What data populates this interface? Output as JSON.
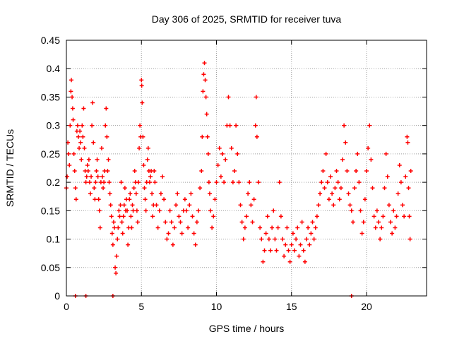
{
  "chart_data": {
    "type": "scatter",
    "title": "Day 306 of 2025, SRMTID for receiver tuva",
    "xlabel": "GPS time / hours",
    "ylabel": "SRMTID / TECUs",
    "xlim": [
      0,
      24
    ],
    "ylim": [
      0,
      0.45
    ],
    "xticks": [
      0,
      5,
      10,
      15,
      20
    ],
    "yticks": [
      0,
      0.05,
      0.1,
      0.15,
      0.2,
      0.25,
      0.3,
      0.35,
      0.4,
      0.45
    ],
    "xtick_labels": [
      "0",
      "5",
      "10",
      "15",
      "20"
    ],
    "ytick_labels": [
      "0",
      "0.05",
      "0.1",
      "0.15",
      "0.2",
      "0.25",
      "0.3",
      "0.35",
      "0.4",
      "0.45"
    ],
    "grid": true,
    "marker": "+",
    "series_color": "#ff0000",
    "series": [
      {
        "points": [
          [
            0.0,
            0.19
          ],
          [
            0.05,
            0.21
          ],
          [
            0.1,
            0.27
          ],
          [
            0.15,
            0.25
          ],
          [
            0.2,
            0.23
          ],
          [
            0.25,
            0.3
          ],
          [
            0.3,
            0.36
          ],
          [
            0.33,
            0.38
          ],
          [
            0.38,
            0.35
          ],
          [
            0.42,
            0.33
          ],
          [
            0.45,
            0.31
          ],
          [
            0.5,
            0.25
          ],
          [
            0.55,
            0.22
          ],
          [
            0.6,
            0.19
          ],
          [
            0.65,
            0.17
          ],
          [
            0.7,
            0.29
          ],
          [
            0.75,
            0.3
          ],
          [
            0.8,
            0.28
          ],
          [
            0.85,
            0.26
          ],
          [
            0.9,
            0.29
          ],
          [
            0.95,
            0.27
          ],
          [
            1.0,
            0.24
          ],
          [
            1.05,
            0.3
          ],
          [
            1.1,
            0.28
          ],
          [
            1.15,
            0.33
          ],
          [
            1.2,
            0.26
          ],
          [
            1.25,
            0.22
          ],
          [
            1.3,
            0.2
          ],
          [
            1.35,
            0.21
          ],
          [
            1.4,
            0.23
          ],
          [
            1.45,
            0.22
          ],
          [
            1.5,
            0.24
          ],
          [
            1.55,
            0.2
          ],
          [
            1.6,
            0.18
          ],
          [
            1.65,
            0.21
          ],
          [
            1.7,
            0.3
          ],
          [
            1.75,
            0.34
          ],
          [
            1.8,
            0.27
          ],
          [
            1.85,
            0.19
          ],
          [
            1.9,
            0.17
          ],
          [
            1.95,
            0.2
          ],
          [
            2.0,
            0.22
          ],
          [
            2.05,
            0.24
          ],
          [
            2.1,
            0.21
          ],
          [
            2.15,
            0.17
          ],
          [
            2.2,
            0.15
          ],
          [
            2.25,
            0.12
          ],
          [
            2.3,
            0.2
          ],
          [
            2.35,
            0.26
          ],
          [
            2.4,
            0.21
          ],
          [
            2.45,
            0.19
          ],
          [
            2.5,
            0.2
          ],
          [
            2.55,
            0.22
          ],
          [
            2.6,
            0.3
          ],
          [
            2.65,
            0.33
          ],
          [
            2.7,
            0.28
          ],
          [
            2.75,
            0.22
          ],
          [
            2.8,
            0.24
          ],
          [
            2.85,
            0.2
          ],
          [
            2.9,
            0.18
          ],
          [
            2.95,
            0.16
          ],
          [
            3.0,
            0.14
          ],
          [
            3.05,
            0.11
          ],
          [
            3.1,
            0.09
          ],
          [
            3.15,
            0.13
          ],
          [
            3.2,
            0.12
          ],
          [
            3.25,
            0.05
          ],
          [
            3.3,
            0.04
          ],
          [
            3.35,
            0.07
          ],
          [
            3.4,
            0.1
          ],
          [
            3.45,
            0.12
          ],
          [
            3.5,
            0.15
          ],
          [
            3.55,
            0.14
          ],
          [
            3.6,
            0.16
          ],
          [
            3.65,
            0.2
          ],
          [
            3.7,
            0.13
          ],
          [
            3.75,
            0.11
          ],
          [
            3.8,
            0.14
          ],
          [
            3.85,
            0.16
          ],
          [
            3.9,
            0.19
          ],
          [
            3.95,
            0.15
          ],
          [
            4.0,
            0.17
          ],
          [
            4.05,
            0.15
          ],
          [
            4.1,
            0.09
          ],
          [
            4.15,
            0.12
          ],
          [
            4.2,
            0.17
          ],
          [
            4.25,
            0.18
          ],
          [
            4.3,
            0.14
          ],
          [
            4.35,
            0.12
          ],
          [
            4.4,
            0.16
          ],
          [
            4.45,
            0.15
          ],
          [
            4.5,
            0.19
          ],
          [
            4.55,
            0.22
          ],
          [
            4.6,
            0.2
          ],
          [
            4.65,
            0.18
          ],
          [
            4.7,
            0.15
          ],
          [
            4.75,
            0.13
          ],
          [
            4.8,
            0.2
          ],
          [
            4.85,
            0.26
          ],
          [
            4.9,
            0.3
          ],
          [
            4.95,
            0.28
          ],
          [
            5.0,
            0.38
          ],
          [
            5.02,
            0.37
          ],
          [
            5.05,
            0.34
          ],
          [
            5.1,
            0.28
          ],
          [
            5.15,
            0.23
          ],
          [
            5.2,
            0.19
          ],
          [
            5.25,
            0.17
          ],
          [
            5.3,
            0.15
          ],
          [
            5.35,
            0.2
          ],
          [
            5.4,
            0.24
          ],
          [
            5.45,
            0.26
          ],
          [
            5.5,
            0.22
          ],
          [
            5.55,
            0.2
          ],
          [
            5.6,
            0.21
          ],
          [
            5.65,
            0.22
          ],
          [
            5.7,
            0.18
          ],
          [
            5.75,
            0.14
          ],
          [
            5.8,
            0.16
          ],
          [
            5.85,
            0.22
          ],
          [
            5.9,
            0.2
          ],
          [
            6.0,
            0.16
          ],
          [
            6.1,
            0.12
          ],
          [
            6.2,
            0.15
          ],
          [
            6.3,
            0.18
          ],
          [
            6.4,
            0.21
          ],
          [
            6.5,
            0.17
          ],
          [
            6.6,
            0.13
          ],
          [
            6.7,
            0.1
          ],
          [
            6.8,
            0.11
          ],
          [
            6.9,
            0.15
          ],
          [
            7.0,
            0.13
          ],
          [
            7.1,
            0.09
          ],
          [
            7.2,
            0.12
          ],
          [
            7.3,
            0.16
          ],
          [
            7.4,
            0.18
          ],
          [
            7.5,
            0.14
          ],
          [
            7.6,
            0.13
          ],
          [
            7.7,
            0.11
          ],
          [
            7.8,
            0.15
          ],
          [
            7.9,
            0.17
          ],
          [
            8.0,
            0.15
          ],
          [
            8.1,
            0.12
          ],
          [
            8.2,
            0.16
          ],
          [
            8.3,
            0.18
          ],
          [
            8.4,
            0.14
          ],
          [
            8.5,
            0.11
          ],
          [
            8.6,
            0.09
          ],
          [
            8.7,
            0.13
          ],
          [
            8.8,
            0.15
          ],
          [
            8.9,
            0.19
          ],
          [
            9.0,
            0.22
          ],
          [
            9.05,
            0.28
          ],
          [
            9.1,
            0.36
          ],
          [
            9.15,
            0.39
          ],
          [
            9.2,
            0.41
          ],
          [
            9.25,
            0.38
          ],
          [
            9.3,
            0.35
          ],
          [
            9.35,
            0.32
          ],
          [
            9.4,
            0.28
          ],
          [
            9.45,
            0.25
          ],
          [
            9.5,
            0.2
          ],
          [
            9.55,
            0.18
          ],
          [
            9.6,
            0.15
          ],
          [
            9.7,
            0.12
          ],
          [
            9.8,
            0.14
          ],
          [
            9.9,
            0.17
          ],
          [
            10.0,
            0.2
          ],
          [
            10.1,
            0.23
          ],
          [
            10.2,
            0.26
          ],
          [
            10.3,
            0.21
          ],
          [
            10.4,
            0.25
          ],
          [
            10.5,
            0.2
          ],
          [
            10.6,
            0.24
          ],
          [
            10.7,
            0.3
          ],
          [
            10.8,
            0.35
          ],
          [
            10.9,
            0.3
          ],
          [
            11.0,
            0.26
          ],
          [
            11.1,
            0.2
          ],
          [
            11.2,
            0.22
          ],
          [
            11.3,
            0.3
          ],
          [
            11.4,
            0.25
          ],
          [
            11.5,
            0.2
          ],
          [
            11.6,
            0.16
          ],
          [
            11.7,
            0.13
          ],
          [
            11.8,
            0.1
          ],
          [
            11.9,
            0.12
          ],
          [
            12.0,
            0.14
          ],
          [
            12.1,
            0.18
          ],
          [
            12.2,
            0.2
          ],
          [
            12.3,
            0.16
          ],
          [
            12.4,
            0.13
          ],
          [
            12.5,
            0.17
          ],
          [
            12.6,
            0.3
          ],
          [
            12.65,
            0.35
          ],
          [
            12.7,
            0.28
          ],
          [
            12.8,
            0.2
          ],
          [
            12.9,
            0.12
          ],
          [
            13.0,
            0.1
          ],
          [
            13.1,
            0.06
          ],
          [
            13.2,
            0.08
          ],
          [
            13.3,
            0.11
          ],
          [
            13.4,
            0.14
          ],
          [
            13.5,
            0.1
          ],
          [
            13.6,
            0.08
          ],
          [
            13.7,
            0.12
          ],
          [
            13.8,
            0.15
          ],
          [
            13.9,
            0.1
          ],
          [
            14.0,
            0.08
          ],
          [
            14.1,
            0.12
          ],
          [
            14.2,
            0.2
          ],
          [
            14.3,
            0.14
          ],
          [
            14.4,
            0.1
          ],
          [
            14.5,
            0.07
          ],
          [
            14.6,
            0.09
          ],
          [
            14.7,
            0.12
          ],
          [
            14.8,
            0.08
          ],
          [
            14.9,
            0.06
          ],
          [
            15.0,
            0.09
          ],
          [
            15.1,
            0.11
          ],
          [
            15.2,
            0.08
          ],
          [
            15.3,
            0.1
          ],
          [
            15.4,
            0.12
          ],
          [
            15.5,
            0.07
          ],
          [
            15.6,
            0.09
          ],
          [
            15.7,
            0.13
          ],
          [
            15.8,
            0.08
          ],
          [
            15.9,
            0.06
          ],
          [
            16.0,
            0.1
          ],
          [
            16.1,
            0.12
          ],
          [
            16.2,
            0.09
          ],
          [
            16.3,
            0.11
          ],
          [
            16.4,
            0.13
          ],
          [
            16.5,
            0.1
          ],
          [
            16.6,
            0.12
          ],
          [
            16.7,
            0.14
          ],
          [
            16.8,
            0.16
          ],
          [
            16.9,
            0.18
          ],
          [
            17.0,
            0.2
          ],
          [
            17.1,
            0.22
          ],
          [
            17.2,
            0.19
          ],
          [
            17.3,
            0.25
          ],
          [
            17.4,
            0.2
          ],
          [
            17.5,
            0.17
          ],
          [
            17.6,
            0.21
          ],
          [
            17.7,
            0.18
          ],
          [
            17.8,
            0.16
          ],
          [
            17.9,
            0.19
          ],
          [
            18.0,
            0.22
          ],
          [
            18.1,
            0.2
          ],
          [
            18.2,
            0.17
          ],
          [
            18.3,
            0.19
          ],
          [
            18.4,
            0.24
          ],
          [
            18.5,
            0.3
          ],
          [
            18.6,
            0.27
          ],
          [
            18.7,
            0.22
          ],
          [
            18.8,
            0.18
          ],
          [
            18.9,
            0.16
          ],
          [
            19.0,
            0.15
          ],
          [
            19.1,
            0.13
          ],
          [
            19.2,
            0.19
          ],
          [
            19.3,
            0.22
          ],
          [
            19.4,
            0.25
          ],
          [
            19.5,
            0.2
          ],
          [
            19.6,
            0.15
          ],
          [
            19.7,
            0.11
          ],
          [
            19.8,
            0.13
          ],
          [
            19.9,
            0.17
          ],
          [
            20.0,
            0.22
          ],
          [
            20.1,
            0.26
          ],
          [
            20.2,
            0.3
          ],
          [
            20.3,
            0.24
          ],
          [
            20.4,
            0.19
          ],
          [
            20.5,
            0.14
          ],
          [
            20.6,
            0.12
          ],
          [
            20.7,
            0.15
          ],
          [
            20.8,
            0.13
          ],
          [
            20.9,
            0.1
          ],
          [
            21.0,
            0.12
          ],
          [
            21.1,
            0.14
          ],
          [
            21.2,
            0.19
          ],
          [
            21.3,
            0.25
          ],
          [
            21.4,
            0.21
          ],
          [
            21.5,
            0.16
          ],
          [
            21.6,
            0.13
          ],
          [
            21.7,
            0.11
          ],
          [
            21.8,
            0.15
          ],
          [
            21.9,
            0.12
          ],
          [
            22.0,
            0.14
          ],
          [
            22.1,
            0.18
          ],
          [
            22.2,
            0.23
          ],
          [
            22.3,
            0.2
          ],
          [
            22.4,
            0.16
          ],
          [
            22.5,
            0.14
          ],
          [
            22.6,
            0.21
          ],
          [
            22.7,
            0.28
          ],
          [
            22.75,
            0.27
          ],
          [
            22.8,
            0.19
          ],
          [
            22.85,
            0.14
          ],
          [
            22.9,
            0.1
          ],
          [
            22.95,
            0.22
          ]
        ]
      },
      {
        "points": [
          [
            0.6,
            0
          ],
          [
            1.3,
            0
          ],
          [
            3.1,
            0
          ],
          [
            19.0,
            0
          ]
        ]
      }
    ]
  }
}
